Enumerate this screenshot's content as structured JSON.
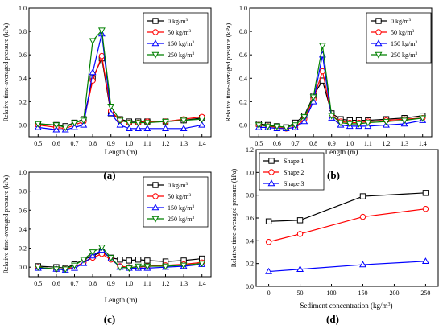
{
  "chart_data": [
    {
      "type": "line",
      "panel": "(a)",
      "xlabel": "Length (m)",
      "ylabel": "Relative time-averaged pressure (kPa)",
      "xlim": [
        0.45,
        1.45
      ],
      "ylim": [
        -0.1,
        1.0
      ],
      "xticks": [
        "0.5",
        "0.6",
        "0.7",
        "0.8",
        "0.9",
        "1.0",
        "1.1",
        "1.2",
        "1.3",
        "1.4"
      ],
      "yticks": [
        "0.0",
        "0.2",
        "0.4",
        "0.6",
        "0.8",
        "1.0"
      ],
      "legend": "top-right",
      "x": [
        0.5,
        0.6,
        0.65,
        0.7,
        0.75,
        0.8,
        0.85,
        0.9,
        0.95,
        1.0,
        1.05,
        1.1,
        1.2,
        1.3,
        1.4
      ],
      "series": [
        {
          "name": "0 kg/m3",
          "name_base": "0 kg/m",
          "color": "#000000",
          "marker": "square",
          "values": [
            0.01,
            0.0,
            -0.01,
            0.02,
            0.05,
            0.4,
            0.57,
            0.1,
            0.05,
            0.03,
            0.03,
            0.03,
            0.03,
            0.04,
            0.06
          ]
        },
        {
          "name": "50 kg/m3",
          "name_base": "50 kg/m",
          "color": "#ff0000",
          "marker": "circle",
          "values": [
            0.0,
            -0.02,
            -0.03,
            0.0,
            0.03,
            0.38,
            0.59,
            0.12,
            0.04,
            0.02,
            0.02,
            0.03,
            0.03,
            0.05,
            0.07
          ]
        },
        {
          "name": "150 kg/m3",
          "name_base": "150 kg/m",
          "color": "#0000ff",
          "marker": "triangle-up",
          "values": [
            -0.02,
            -0.04,
            -0.04,
            -0.02,
            0.0,
            0.45,
            0.78,
            0.1,
            0.0,
            -0.03,
            -0.03,
            -0.03,
            -0.03,
            -0.03,
            0.0
          ]
        },
        {
          "name": "250 kg/m3",
          "name_base": "250 kg/m",
          "color": "#008000",
          "marker": "triangle-down",
          "values": [
            0.01,
            0.0,
            -0.02,
            0.02,
            0.04,
            0.72,
            0.81,
            0.16,
            0.04,
            0.02,
            0.02,
            0.02,
            0.03,
            0.04,
            0.05
          ]
        }
      ]
    },
    {
      "type": "line",
      "panel": "(b)",
      "xlabel": "Length (m)",
      "ylabel": "Relative time-averaged pressure (kPa)",
      "xlim": [
        0.45,
        1.45
      ],
      "ylim": [
        -0.1,
        1.0
      ],
      "xticks": [
        "0.5",
        "0.6",
        "0.7",
        "0.8",
        "0.9",
        "1.0",
        "1.1",
        "1.2",
        "1.3",
        "1.4"
      ],
      "yticks": [
        "0.0",
        "0.2",
        "0.4",
        "0.6",
        "0.8",
        "1.0"
      ],
      "legend": "top-right",
      "x": [
        0.5,
        0.55,
        0.6,
        0.65,
        0.7,
        0.75,
        0.8,
        0.85,
        0.9,
        0.95,
        1.0,
        1.05,
        1.1,
        1.2,
        1.3,
        1.4
      ],
      "series": [
        {
          "name": "0 kg/m3",
          "name_base": "0 kg/m",
          "color": "#000000",
          "marker": "square",
          "values": [
            0.01,
            0.0,
            -0.01,
            -0.02,
            0.02,
            0.08,
            0.25,
            0.38,
            0.1,
            0.05,
            0.04,
            0.04,
            0.04,
            0.05,
            0.06,
            0.08
          ]
        },
        {
          "name": "50 kg/m3",
          "name_base": "50 kg/m",
          "color": "#ff0000",
          "marker": "circle",
          "values": [
            0.0,
            -0.01,
            -0.02,
            -0.03,
            -0.02,
            0.05,
            0.22,
            0.46,
            0.08,
            0.03,
            0.02,
            0.02,
            0.03,
            0.04,
            0.05,
            0.06
          ]
        },
        {
          "name": "150 kg/m3",
          "name_base": "150 kg/m",
          "color": "#0000ff",
          "marker": "triangle-up",
          "values": [
            -0.02,
            -0.02,
            -0.03,
            -0.03,
            -0.02,
            0.03,
            0.2,
            0.6,
            0.06,
            0.0,
            -0.01,
            -0.01,
            -0.01,
            0.0,
            0.01,
            0.04
          ]
        },
        {
          "name": "250 kg/m3",
          "name_base": "250 kg/m",
          "color": "#008000",
          "marker": "triangle-down",
          "values": [
            0.0,
            -0.01,
            -0.01,
            -0.02,
            0.0,
            0.07,
            0.24,
            0.68,
            0.08,
            0.02,
            0.01,
            0.01,
            0.02,
            0.03,
            0.04,
            0.06
          ]
        }
      ]
    },
    {
      "type": "line",
      "panel": "(c)",
      "xlabel": "Length (m)",
      "ylabel": "Relative time-averaged pressure (kPa)",
      "xlim": [
        0.45,
        1.45
      ],
      "ylim": [
        -0.1,
        1.0
      ],
      "xticks": [
        "0.5",
        "0.6",
        "0.7",
        "0.8",
        "0.9",
        "1.0",
        "1.1",
        "1.2",
        "1.3",
        "1.4"
      ],
      "yticks": [
        "0.0",
        "0.2",
        "0.4",
        "0.6",
        "0.8",
        "1.0"
      ],
      "legend": "top-right",
      "x": [
        0.5,
        0.6,
        0.65,
        0.7,
        0.75,
        0.8,
        0.85,
        0.9,
        0.95,
        1.0,
        1.05,
        1.1,
        1.2,
        1.3,
        1.4
      ],
      "series": [
        {
          "name": "0 kg/m3",
          "name_base": "0 kg/m",
          "color": "#000000",
          "marker": "square",
          "values": [
            0.01,
            0.0,
            -0.01,
            0.03,
            0.08,
            0.12,
            0.16,
            0.1,
            0.08,
            0.07,
            0.08,
            0.07,
            0.06,
            0.07,
            0.09
          ]
        },
        {
          "name": "50 kg/m3",
          "name_base": "50 kg/m",
          "color": "#ff0000",
          "marker": "circle",
          "values": [
            0.0,
            -0.02,
            -0.02,
            0.0,
            0.05,
            0.1,
            0.14,
            0.08,
            0.01,
            0.0,
            0.0,
            0.01,
            0.02,
            0.03,
            0.05
          ]
        },
        {
          "name": "150 kg/m3",
          "name_base": "150 kg/m",
          "color": "#0000ff",
          "marker": "triangle-up",
          "values": [
            -0.01,
            -0.02,
            -0.03,
            -0.01,
            0.04,
            0.12,
            0.18,
            0.09,
            0.0,
            -0.01,
            -0.01,
            -0.01,
            0.0,
            0.01,
            0.03
          ]
        },
        {
          "name": "250 kg/m3",
          "name_base": "250 kg/m",
          "color": "#008000",
          "marker": "triangle-down",
          "values": [
            0.0,
            -0.02,
            -0.02,
            0.02,
            0.08,
            0.16,
            0.21,
            0.1,
            0.0,
            -0.01,
            0.01,
            0.01,
            0.01,
            0.02,
            0.04
          ]
        }
      ]
    },
    {
      "type": "line",
      "panel": "(d)",
      "xlabel": "Sediment concentration (kg/m3)",
      "xlabel_base": "Sediment concentration (kg/m",
      "xlabel_tail": ")",
      "ylabel": "Relative time-averaged pressure (kPa)",
      "xlim": [
        -20,
        270
      ],
      "ylim": [
        0.0,
        1.2
      ],
      "xticks": [
        "0",
        "50",
        "100",
        "150",
        "200",
        "250"
      ],
      "yticks": [
        "0.0",
        "0.2",
        "0.4",
        "0.6",
        "0.8",
        "1.0",
        "1.2"
      ],
      "legend": "top-left",
      "x": [
        0,
        50,
        150,
        250
      ],
      "series": [
        {
          "name": "Shape 1",
          "color": "#000000",
          "marker": "square",
          "values": [
            0.57,
            0.58,
            0.79,
            0.82
          ]
        },
        {
          "name": "Shape 2",
          "color": "#ff0000",
          "marker": "circle",
          "values": [
            0.39,
            0.46,
            0.61,
            0.68
          ]
        },
        {
          "name": "Shape 3",
          "color": "#0000ff",
          "marker": "triangle-up",
          "values": [
            0.13,
            0.15,
            0.19,
            0.22
          ]
        }
      ]
    }
  ]
}
